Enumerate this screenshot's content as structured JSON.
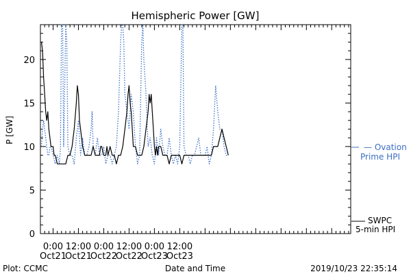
{
  "footer": {
    "left": "Plot: CCMC",
    "center": "Date and Time",
    "right": "2019/10/23 22:35:14"
  },
  "colors": {
    "swpc": "#000000",
    "ovation": "#3a6fc4"
  },
  "chart_data": {
    "type": "line",
    "title": "Hemispheric Power [GW]",
    "xlabel": "",
    "ylabel": "P [GW]",
    "ylim": [
      0,
      24
    ],
    "xlim": [
      -6,
      141
    ],
    "x_units": "hours since 0:00 Oct21",
    "yticks": [
      0,
      5,
      10,
      15,
      20
    ],
    "xticks": [
      {
        "x": 0,
        "line1": "0:00",
        "line2": "Oct21"
      },
      {
        "x": 12,
        "line1": "12:00",
        "line2": "Oct21"
      },
      {
        "x": 24,
        "line1": "0:00",
        "line2": "Oct22"
      },
      {
        "x": 36,
        "line1": "12:00",
        "line2": "Oct22"
      },
      {
        "x": 48,
        "line1": "0:00",
        "line2": "Oct23"
      },
      {
        "x": 60,
        "line1": "12:00",
        "line2": "Oct23"
      }
    ],
    "legend": [
      {
        "series": "ovation",
        "line1": "— Ovation",
        "line2": "Prime HPI"
      },
      {
        "series": "swpc",
        "line1": "SWPC",
        "line2": "5-min HPI"
      }
    ],
    "series": [
      {
        "id": "swpc",
        "values": [
          [
            -5.5,
            22
          ],
          [
            -5,
            21
          ],
          [
            -4.5,
            18
          ],
          [
            -4,
            16
          ],
          [
            -3.5,
            14
          ],
          [
            -3,
            13
          ],
          [
            -2.5,
            14
          ],
          [
            -2,
            12
          ],
          [
            -1.5,
            11
          ],
          [
            -1,
            10
          ],
          [
            0,
            10
          ],
          [
            0.5,
            9
          ],
          [
            1,
            9
          ],
          [
            2,
            8
          ],
          [
            3,
            8
          ],
          [
            4,
            8
          ],
          [
            5,
            8
          ],
          [
            6,
            8
          ],
          [
            7,
            9
          ],
          [
            8,
            9
          ],
          [
            9,
            10
          ],
          [
            10,
            12
          ],
          [
            11,
            15
          ],
          [
            11.5,
            17
          ],
          [
            12,
            16
          ],
          [
            12.5,
            13
          ],
          [
            13,
            12
          ],
          [
            14,
            10
          ],
          [
            15,
            9
          ],
          [
            16,
            9
          ],
          [
            17,
            9
          ],
          [
            18,
            9
          ],
          [
            19,
            10
          ],
          [
            20,
            9
          ],
          [
            21,
            9
          ],
          [
            22,
            9
          ],
          [
            22.5,
            10
          ],
          [
            23,
            10
          ],
          [
            24,
            9
          ],
          [
            25,
            9
          ],
          [
            25.5,
            10
          ],
          [
            26,
            9
          ],
          [
            27,
            10
          ],
          [
            28,
            9
          ],
          [
            29,
            9
          ],
          [
            30,
            8
          ],
          [
            31,
            9
          ],
          [
            32,
            9
          ],
          [
            33,
            10
          ],
          [
            34,
            12
          ],
          [
            35,
            14
          ],
          [
            35.5,
            16
          ],
          [
            36,
            17
          ],
          [
            36.5,
            15
          ],
          [
            37,
            14
          ],
          [
            37.5,
            12
          ],
          [
            38,
            10
          ],
          [
            39,
            10
          ],
          [
            40,
            9
          ],
          [
            41,
            9
          ],
          [
            42,
            9
          ],
          [
            43,
            10
          ],
          [
            44,
            12
          ],
          [
            45,
            14
          ],
          [
            45.5,
            16
          ],
          [
            46,
            15
          ],
          [
            46.5,
            16
          ],
          [
            47,
            14
          ],
          [
            47.5,
            12
          ],
          [
            48,
            10
          ],
          [
            48.5,
            9
          ],
          [
            49,
            10
          ],
          [
            49.5,
            9
          ],
          [
            50,
            10
          ],
          [
            51,
            10
          ],
          [
            52,
            9
          ],
          [
            53,
            9
          ],
          [
            54,
            9
          ],
          [
            55,
            8
          ],
          [
            56,
            9
          ],
          [
            57,
            9
          ],
          [
            58,
            9
          ],
          [
            59,
            9
          ],
          [
            60,
            9
          ],
          [
            61,
            8
          ],
          [
            62,
            9
          ],
          [
            63,
            9
          ],
          [
            64,
            9
          ],
          [
            65,
            9
          ],
          [
            66,
            9
          ],
          [
            67,
            9
          ],
          [
            68,
            9
          ],
          [
            69,
            9
          ],
          [
            70,
            9
          ],
          [
            71,
            9
          ],
          [
            72,
            9
          ],
          [
            73,
            9
          ],
          [
            74,
            9
          ],
          [
            75,
            9
          ],
          [
            76,
            10
          ],
          [
            77,
            10
          ],
          [
            78,
            10
          ],
          [
            79,
            11
          ],
          [
            80,
            12
          ],
          [
            81,
            11
          ],
          [
            82,
            10
          ],
          [
            83,
            9
          ]
        ]
      },
      {
        "id": "ovation",
        "values": [
          [
            -5.5,
            10
          ],
          [
            -5,
            12
          ],
          [
            -4.5,
            13
          ],
          [
            -4,
            12
          ],
          [
            -3.5,
            11
          ],
          [
            -3,
            10
          ],
          [
            -2.5,
            9
          ],
          [
            -2,
            9
          ],
          [
            -1.5,
            10
          ],
          [
            -1,
            10
          ],
          [
            0,
            9
          ],
          [
            1,
            8
          ],
          [
            2,
            9
          ],
          [
            3,
            8
          ],
          [
            3.5,
            10
          ],
          [
            4,
            24
          ],
          [
            4.5,
            24
          ],
          [
            5,
            10
          ],
          [
            6,
            24
          ],
          [
            6.5,
            22
          ],
          [
            7,
            10
          ],
          [
            8,
            9
          ],
          [
            9,
            9
          ],
          [
            10,
            8
          ],
          [
            11,
            11
          ],
          [
            12,
            13
          ],
          [
            13,
            9
          ],
          [
            14,
            11
          ],
          [
            15,
            9
          ],
          [
            16,
            9
          ],
          [
            17,
            10
          ],
          [
            18,
            12
          ],
          [
            18.5,
            14
          ],
          [
            19,
            10
          ],
          [
            20,
            9
          ],
          [
            21,
            11
          ],
          [
            22,
            9
          ],
          [
            23,
            9
          ],
          [
            24,
            10
          ],
          [
            25,
            8
          ],
          [
            26,
            9
          ],
          [
            27,
            9
          ],
          [
            28,
            8
          ],
          [
            29,
            9
          ],
          [
            30,
            10
          ],
          [
            31,
            14
          ],
          [
            32,
            22
          ],
          [
            32.5,
            24
          ],
          [
            33,
            24
          ],
          [
            33.5,
            22
          ],
          [
            34,
            16
          ],
          [
            35,
            14
          ],
          [
            36,
            12
          ],
          [
            37,
            16
          ],
          [
            38,
            14
          ],
          [
            39,
            10
          ],
          [
            40,
            8
          ],
          [
            41,
            9
          ],
          [
            42,
            22
          ],
          [
            42.5,
            24
          ],
          [
            43,
            20
          ],
          [
            44,
            16
          ],
          [
            45,
            10
          ],
          [
            46,
            11
          ],
          [
            47,
            9
          ],
          [
            48,
            8
          ],
          [
            49,
            11
          ],
          [
            50,
            9
          ],
          [
            51,
            12
          ],
          [
            52,
            10
          ],
          [
            53,
            9
          ],
          [
            54,
            9
          ],
          [
            55,
            11
          ],
          [
            56,
            9
          ],
          [
            57,
            8
          ],
          [
            58,
            9
          ],
          [
            59,
            8
          ],
          [
            60,
            10
          ],
          [
            61,
            24
          ],
          [
            61.5,
            24
          ],
          [
            62,
            10
          ],
          [
            63,
            9
          ],
          [
            64,
            9
          ],
          [
            65,
            8
          ],
          [
            66,
            9
          ],
          [
            67,
            9
          ],
          [
            68,
            10
          ],
          [
            69,
            11
          ],
          [
            70,
            9
          ],
          [
            71,
            9
          ],
          [
            72,
            9
          ],
          [
            73,
            10
          ],
          [
            74,
            8
          ],
          [
            75,
            9
          ],
          [
            76,
            12
          ],
          [
            77,
            17
          ],
          [
            78,
            14
          ],
          [
            79,
            12
          ],
          [
            80,
            12
          ],
          [
            81,
            10
          ],
          [
            82,
            9
          ],
          [
            83,
            9
          ]
        ]
      }
    ]
  }
}
